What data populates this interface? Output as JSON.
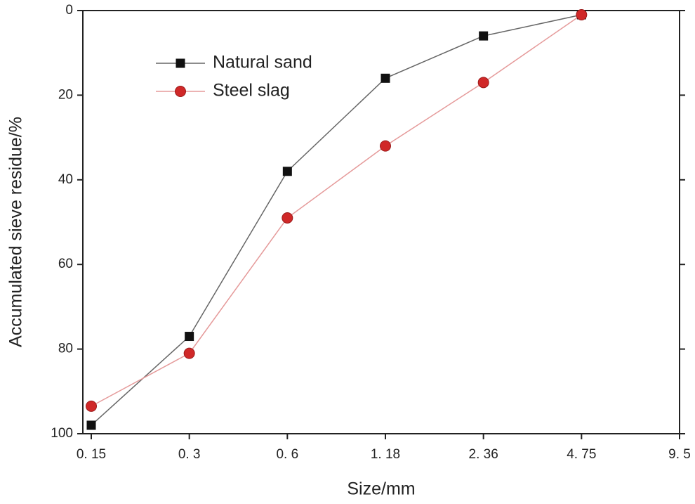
{
  "chart_data": {
    "type": "line",
    "xlabel": "Size/mm",
    "ylabel": "Accumulated sieve residue/%",
    "categories": [
      "0. 15",
      "0. 3",
      "0. 6",
      "1. 18",
      "2. 36",
      "4. 75",
      "9. 5"
    ],
    "series": [
      {
        "name": "Natural sand",
        "color": "#111111",
        "line_color": "#666666",
        "marker": "square",
        "values": [
          98,
          77,
          38,
          16,
          6,
          1,
          null
        ]
      },
      {
        "name": "Steel slag",
        "color": "#d02828",
        "line_color": "#e59a9a",
        "marker": "circle",
        "values": [
          93.5,
          81,
          49,
          32,
          17,
          1,
          null
        ]
      }
    ],
    "ylim": [
      0,
      100
    ],
    "yticks": [
      0,
      20,
      40,
      60,
      80,
      100
    ],
    "y_inverted": true,
    "grid": false,
    "legend": "upper left"
  }
}
